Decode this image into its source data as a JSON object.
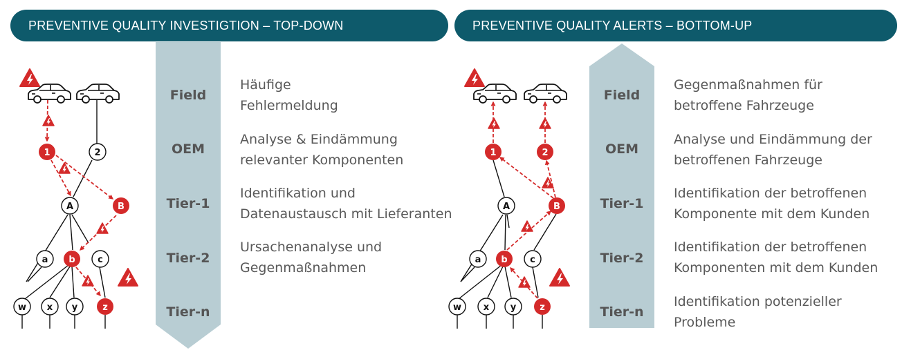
{
  "left_panel": {
    "title": "PREVENTIVE QUALITY INVESTIGTION – TOP-DOWN",
    "levels": [
      "Field",
      "OEM",
      "Tier-1",
      "Tier-2",
      "Tier-n"
    ],
    "descriptions": [
      [
        "Häufige",
        "Fehlermeldung"
      ],
      [
        "Analyse & Eindämmung",
        "relevanter Komponenten"
      ],
      [
        "Identifikation und",
        "Datenaustausch mit Lieferanten"
      ],
      [
        "Ursachenanalyse und",
        "Gegenmaßnahmen"
      ]
    ],
    "nodes": {
      "oem": [
        "1",
        "2"
      ],
      "tier1": [
        "A",
        "B"
      ],
      "tier2": [
        "a",
        "b",
        "c"
      ],
      "tiern": [
        "w",
        "x",
        "y",
        "z"
      ]
    }
  },
  "right_panel": {
    "title": "PREVENTIVE QUALITY ALERTS – BOTTOM-UP",
    "levels": [
      "Field",
      "OEM",
      "Tier-1",
      "Tier-2",
      "Tier-n"
    ],
    "descriptions": [
      [
        "Gegenmaßnahmen für",
        "betroffene Fahrzeuge"
      ],
      [
        "Analyse und Eindämmung der",
        "betroffenen Fahrzeuge"
      ],
      [
        "Identifikation der betroffenen",
        "Komponente mit dem Kunden"
      ],
      [
        "Identifikation der betroffenen",
        "Komponenten mit dem Kunden"
      ],
      [
        "Identifikation potenzieller",
        "Probleme"
      ]
    ],
    "nodes": {
      "oem": [
        "1",
        "2"
      ],
      "tier1": [
        "A",
        "B"
      ],
      "tier2": [
        "a",
        "b",
        "c"
      ],
      "tiern": [
        "w",
        "x",
        "y",
        "z"
      ]
    }
  },
  "colors": {
    "header": "#0e5a6b",
    "arrow": "#b8cdd3",
    "alert_red": "#d42a2a",
    "text": "#595959"
  },
  "icons": [
    "car-icon",
    "warning-icon"
  ]
}
